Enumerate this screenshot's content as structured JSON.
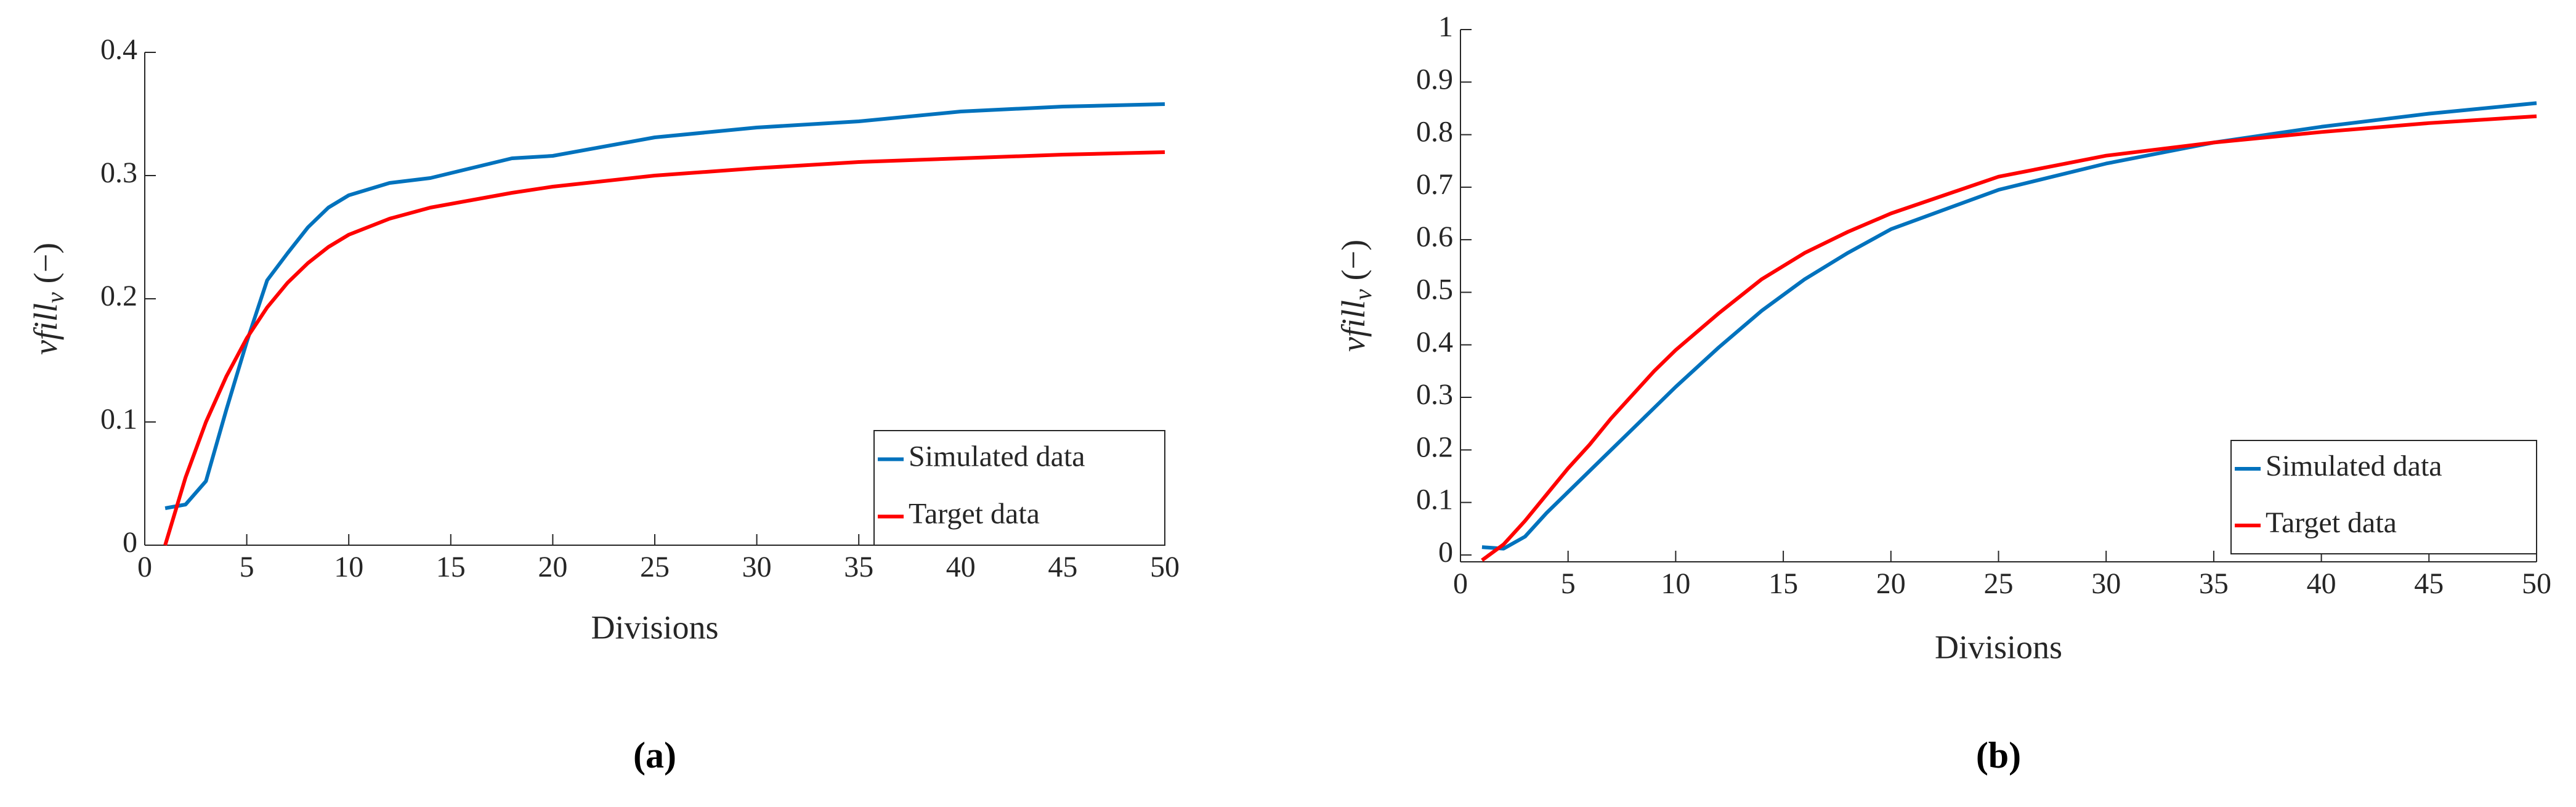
{
  "chart_data": [
    {
      "type": "line",
      "panel_label": "(a)",
      "x_label": "Divisions",
      "y_label": {
        "name": "vfill",
        "subscript": "v",
        "unit": "(−)"
      },
      "x": [
        1,
        2,
        3,
        4,
        5,
        6,
        7,
        8,
        9,
        10,
        12,
        14,
        16,
        18,
        20,
        25,
        30,
        35,
        40,
        45,
        50
      ],
      "series": [
        {
          "name": "Simulated data",
          "color": "#0072bd",
          "values": [
            0.03,
            0.033,
            0.052,
            0.11,
            0.165,
            0.215,
            0.237,
            0.258,
            0.274,
            0.284,
            0.294,
            0.298,
            0.306,
            0.314,
            0.316,
            0.331,
            0.339,
            0.344,
            0.352,
            0.356,
            0.358
          ]
        },
        {
          "name": "Target data",
          "color": "#ff0000",
          "values": [
            0,
            0.055,
            0.1,
            0.137,
            0.168,
            0.193,
            0.213,
            0.229,
            0.242,
            0.252,
            0.265,
            0.274,
            0.28,
            0.286,
            0.291,
            0.3,
            0.306,
            0.311,
            0.314,
            0.317,
            0.319
          ]
        }
      ],
      "xlim": [
        0,
        50
      ],
      "ylim": [
        0,
        0.4
      ],
      "xticks": [
        0,
        5,
        10,
        15,
        20,
        25,
        30,
        35,
        40,
        45,
        50
      ],
      "yticks": [
        0,
        0.1,
        0.2,
        0.3,
        0.4
      ],
      "legend": "lower right"
    },
    {
      "type": "line",
      "panel_label": "(b)",
      "x_label": "Divisions",
      "y_label": {
        "name": "vfill",
        "subscript": "v",
        "unit": "(−)"
      },
      "x": [
        1,
        2,
        3,
        4,
        5,
        6,
        7,
        8,
        9,
        10,
        12,
        14,
        16,
        18,
        20,
        25,
        30,
        35,
        40,
        45,
        50
      ],
      "series": [
        {
          "name": "Simulated data",
          "color": "#0072bd",
          "values": [
            0.015,
            0.012,
            0.035,
            0.08,
            0.12,
            0.16,
            0.2,
            0.24,
            0.28,
            0.32,
            0.395,
            0.465,
            0.525,
            0.575,
            0.62,
            0.695,
            0.745,
            0.785,
            0.815,
            0.84,
            0.86
          ]
        },
        {
          "name": "Target data",
          "color": "#ff0000",
          "values": [
            -0.01,
            0.02,
            0.065,
            0.115,
            0.165,
            0.21,
            0.26,
            0.305,
            0.35,
            0.39,
            0.46,
            0.525,
            0.575,
            0.615,
            0.65,
            0.72,
            0.76,
            0.785,
            0.805,
            0.822,
            0.835
          ]
        }
      ],
      "xlim": [
        0,
        50
      ],
      "ylim": [
        -0.013,
        1
      ],
      "xticks": [
        0,
        5,
        10,
        15,
        20,
        25,
        30,
        35,
        40,
        45,
        50
      ],
      "yticks": [
        0,
        0.1,
        0.2,
        0.3,
        0.4,
        0.5,
        0.6,
        0.7,
        0.8,
        0.9,
        1
      ],
      "legend": "lower right"
    }
  ]
}
